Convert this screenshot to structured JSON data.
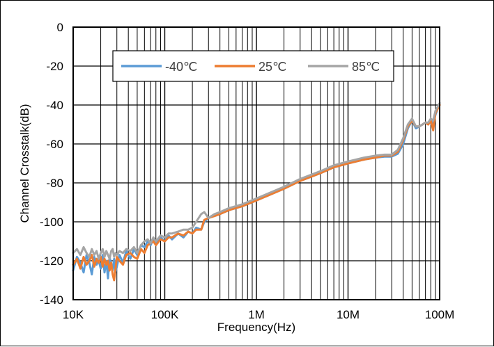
{
  "chart_data": {
    "type": "line",
    "title": "",
    "xlabel": "Frequency(Hz)",
    "ylabel": "Channel Crosstalk(dB)",
    "x_scale": "log",
    "xlim": [
      10000,
      100000000
    ],
    "ylim": [
      -140,
      0
    ],
    "x_tick_values": [
      10000,
      100000,
      1000000,
      10000000,
      100000000
    ],
    "x_tick_labels": [
      "10K",
      "100K",
      "1M",
      "10M",
      "100M"
    ],
    "y_ticks": [
      0,
      -20,
      -40,
      -60,
      -80,
      -100,
      -120,
      -140
    ],
    "grid": true,
    "legend_position": "top",
    "series": [
      {
        "name": "-40℃",
        "color": "#5B9BD5",
        "x": [
          10000,
          11000,
          12000,
          13000,
          14000,
          15000,
          16000,
          17000,
          18000,
          19000,
          20000,
          21000,
          22000,
          23000,
          24000,
          25000,
          26000,
          27000,
          28000,
          29000,
          30000,
          32000,
          35000,
          38000,
          42000,
          46000,
          50000,
          55000,
          60000,
          65000,
          70000,
          75000,
          80000,
          90000,
          100000,
          110000,
          120000,
          140000,
          160000,
          180000,
          200000,
          220000,
          250000,
          270000,
          300000,
          350000,
          400000,
          500000,
          700000,
          1000000,
          2000000,
          3000000,
          5000000,
          7000000,
          10000000,
          15000000,
          20000000,
          25000000,
          30000000,
          35000000,
          40000000,
          45000000,
          50000000,
          55000000,
          60000000,
          65000000,
          70000000,
          75000000,
          80000000,
          85000000,
          90000000,
          95000000,
          100000000
        ],
        "y": [
          -125,
          -118,
          -121,
          -126,
          -117,
          -121,
          -127,
          -118,
          -122,
          -120,
          -124,
          -117,
          -126,
          -120,
          -129,
          -118,
          -122,
          -125,
          -119,
          -126,
          -123,
          -117,
          -121,
          -115,
          -119,
          -114,
          -117,
          -112,
          -113,
          -110,
          -112,
          -109,
          -111,
          -108,
          -110,
          -107,
          -109,
          -106,
          -108,
          -105,
          -106,
          -103,
          -104,
          -100,
          -98,
          -97,
          -96,
          -94,
          -92,
          -89,
          -83,
          -79,
          -75,
          -72,
          -70,
          -68,
          -67,
          -66.5,
          -66.5,
          -65,
          -60,
          -52,
          -48,
          -52,
          -51,
          -50,
          -49,
          -50,
          -48,
          -50,
          -45,
          -42,
          -40
        ]
      },
      {
        "name": "25℃",
        "color": "#ED7D31",
        "x": [
          10000,
          11000,
          12000,
          13000,
          14000,
          15000,
          16000,
          17000,
          18000,
          19000,
          20000,
          21000,
          22000,
          23000,
          24000,
          25000,
          26000,
          27000,
          28000,
          29000,
          30000,
          32000,
          35000,
          38000,
          42000,
          46000,
          50000,
          55000,
          60000,
          65000,
          70000,
          75000,
          80000,
          90000,
          100000,
          110000,
          120000,
          140000,
          160000,
          180000,
          200000,
          220000,
          250000,
          270000,
          300000,
          350000,
          400000,
          500000,
          700000,
          1000000,
          2000000,
          3000000,
          5000000,
          7000000,
          10000000,
          15000000,
          20000000,
          25000000,
          30000000,
          35000000,
          40000000,
          45000000,
          50000000,
          55000000,
          60000000,
          65000000,
          70000000,
          75000000,
          80000000,
          85000000,
          90000000,
          95000000,
          100000000
        ],
        "y": [
          -122,
          -119,
          -124,
          -118,
          -122,
          -120,
          -117,
          -123,
          -119,
          -121,
          -118,
          -123,
          -119,
          -122,
          -120,
          -125,
          -121,
          -127,
          -130,
          -124,
          -118,
          -120,
          -122,
          -117,
          -116,
          -118,
          -119,
          -114,
          -116,
          -112,
          -111,
          -110,
          -112,
          -109,
          -110,
          -108,
          -108,
          -106,
          -107,
          -105,
          -106,
          -104,
          -104,
          -99,
          -98,
          -97,
          -96,
          -94,
          -92,
          -89,
          -83,
          -79,
          -75,
          -72,
          -70,
          -68,
          -67,
          -66,
          -66,
          -64,
          -58,
          -51,
          -48,
          -51,
          -51,
          -50,
          -49,
          -50,
          -48,
          -53,
          -44,
          -42,
          -40
        ]
      },
      {
        "name": "85℃",
        "color": "#A5A5A5",
        "x": [
          10000,
          11000,
          12000,
          13000,
          14000,
          15000,
          16000,
          17000,
          18000,
          19000,
          20000,
          21000,
          22000,
          23000,
          24000,
          25000,
          26000,
          27000,
          28000,
          29000,
          30000,
          32000,
          35000,
          38000,
          42000,
          46000,
          50000,
          55000,
          60000,
          65000,
          70000,
          75000,
          80000,
          90000,
          100000,
          110000,
          120000,
          140000,
          160000,
          180000,
          200000,
          220000,
          250000,
          270000,
          300000,
          350000,
          400000,
          500000,
          700000,
          1000000,
          2000000,
          3000000,
          5000000,
          7000000,
          10000000,
          15000000,
          20000000,
          25000000,
          30000000,
          35000000,
          40000000,
          45000000,
          50000000,
          55000000,
          60000000,
          65000000,
          70000000,
          75000000,
          80000000,
          85000000,
          90000000,
          95000000,
          100000000
        ],
        "y": [
          -116,
          -114,
          -117,
          -113,
          -116,
          -118,
          -114,
          -117,
          -115,
          -119,
          -116,
          -114,
          -118,
          -115,
          -117,
          -119,
          -115,
          -114,
          -118,
          -116,
          -117,
          -115,
          -116,
          -114,
          -115,
          -113,
          -116,
          -112,
          -110,
          -109,
          -111,
          -108,
          -110,
          -107,
          -108,
          -106,
          -106,
          -105,
          -104,
          -104,
          -103,
          -100,
          -96,
          -95,
          -98,
          -96,
          -95,
          -93,
          -91,
          -88,
          -82,
          -78,
          -74,
          -71,
          -69,
          -67,
          -66,
          -65.5,
          -65.5,
          -63,
          -57,
          -50,
          -47,
          -51,
          -51,
          -50,
          -49,
          -49,
          -47,
          -48,
          -43,
          -41,
          -39
        ]
      }
    ]
  }
}
